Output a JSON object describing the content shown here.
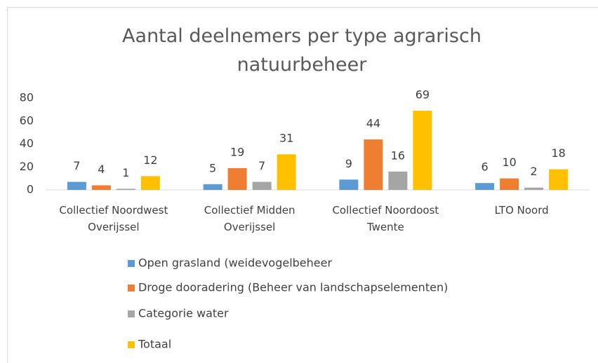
{
  "chart_data": {
    "type": "bar",
    "title": "Aantal deelnemers per type agrarisch natuurbeheer",
    "categories": [
      "Collectief Noordwest Overijssel",
      "Collectief Midden Overijssel",
      "Collectief Noordoost Twente",
      "LTO Noord"
    ],
    "series": [
      {
        "name": "Open grasland (weidevogelbeheer",
        "color": "#5b9bd5",
        "values": [
          7,
          5,
          9,
          6
        ]
      },
      {
        "name": "Droge dooradering (Beheer van landschapselementen)",
        "color": "#ed7d31",
        "values": [
          4,
          19,
          44,
          10
        ]
      },
      {
        "name": "Categorie water",
        "color": "#a5a5a5",
        "values": [
          1,
          7,
          16,
          2
        ]
      },
      {
        "name": "Totaal",
        "color": "#ffc000",
        "values": [
          12,
          31,
          69,
          18
        ]
      }
    ],
    "ylim": [
      0,
      80
    ],
    "yticks": [
      0,
      20,
      40,
      60,
      80
    ],
    "grid": false,
    "legend": "bottom"
  }
}
